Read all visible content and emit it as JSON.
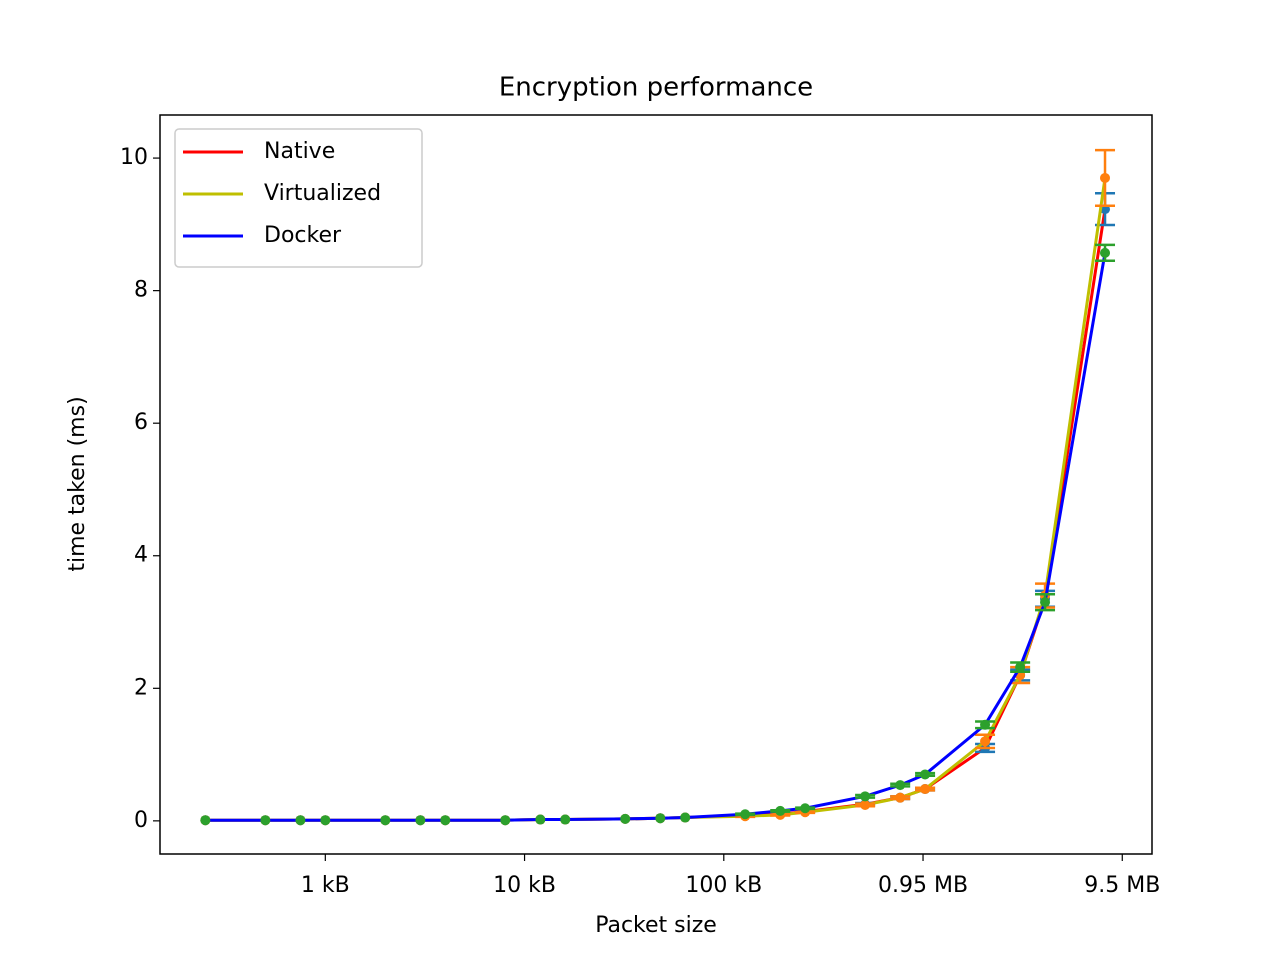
{
  "chart_data": {
    "type": "line",
    "title": "Encryption performance",
    "x_label": "Packet size",
    "y_label": "time taken (ms)",
    "x": [
      250,
      500,
      750,
      1000,
      2000,
      3000,
      4000,
      8000,
      12000,
      16000,
      32000,
      48000,
      64000,
      128000,
      192000,
      256000,
      512000,
      768000,
      1024000,
      2048000,
      3072000,
      4096000,
      8192000
    ],
    "series": [
      {
        "name": "Native",
        "color": "#ff0000",
        "marker_color": "#1f77b4",
        "values": [
          0.01,
          0.01,
          0.01,
          0.01,
          0.01,
          0.01,
          0.01,
          0.01,
          0.02,
          0.02,
          0.03,
          0.04,
          0.05,
          0.08,
          0.1,
          0.14,
          0.25,
          0.35,
          0.48,
          1.1,
          2.2,
          3.35,
          9.23
        ],
        "errors": [
          0,
          0,
          0,
          0,
          0,
          0,
          0,
          0,
          0,
          0,
          0,
          0,
          0,
          0.01,
          0.01,
          0.01,
          0.02,
          0.02,
          0.02,
          0.06,
          0.08,
          0.12,
          0.24
        ]
      },
      {
        "name": "Virtualized",
        "color": "#bfbf00",
        "marker_color": "#ff7f0e",
        "values": [
          0.01,
          0.01,
          0.01,
          0.01,
          0.01,
          0.01,
          0.01,
          0.01,
          0.02,
          0.02,
          0.03,
          0.04,
          0.05,
          0.07,
          0.09,
          0.13,
          0.24,
          0.35,
          0.48,
          1.2,
          2.2,
          3.4,
          9.7
        ],
        "errors": [
          0,
          0,
          0,
          0,
          0,
          0,
          0,
          0,
          0,
          0,
          0,
          0,
          0,
          0.01,
          0.01,
          0.01,
          0.02,
          0.02,
          0.02,
          0.1,
          0.12,
          0.18,
          0.42
        ]
      },
      {
        "name": "Docker",
        "color": "#0000ff",
        "marker_color": "#2ca02c",
        "values": [
          0.01,
          0.01,
          0.01,
          0.01,
          0.01,
          0.01,
          0.01,
          0.01,
          0.02,
          0.02,
          0.03,
          0.04,
          0.05,
          0.1,
          0.15,
          0.19,
          0.37,
          0.54,
          0.7,
          1.45,
          2.32,
          3.3,
          8.57
        ],
        "errors": [
          0,
          0,
          0,
          0,
          0,
          0,
          0,
          0,
          0,
          0,
          0,
          0,
          0,
          0.01,
          0.01,
          0.01,
          0.02,
          0.02,
          0.02,
          0.05,
          0.07,
          0.12,
          0.12
        ]
      }
    ],
    "x_scale": "log",
    "xlim": [
      148,
      14100000
    ],
    "xticks": [
      {
        "value": 1000,
        "label": "1 kB"
      },
      {
        "value": 10000,
        "label": "10 kB"
      },
      {
        "value": 100000,
        "label": "100 kB"
      },
      {
        "value": 1000000,
        "label": "0.95 MB"
      },
      {
        "value": 10000000,
        "label": "9.5 MB"
      }
    ],
    "ylim": [
      -0.5,
      10.65
    ],
    "yticks": [
      0,
      2,
      4,
      6,
      8,
      10
    ],
    "legend": "upper left"
  }
}
